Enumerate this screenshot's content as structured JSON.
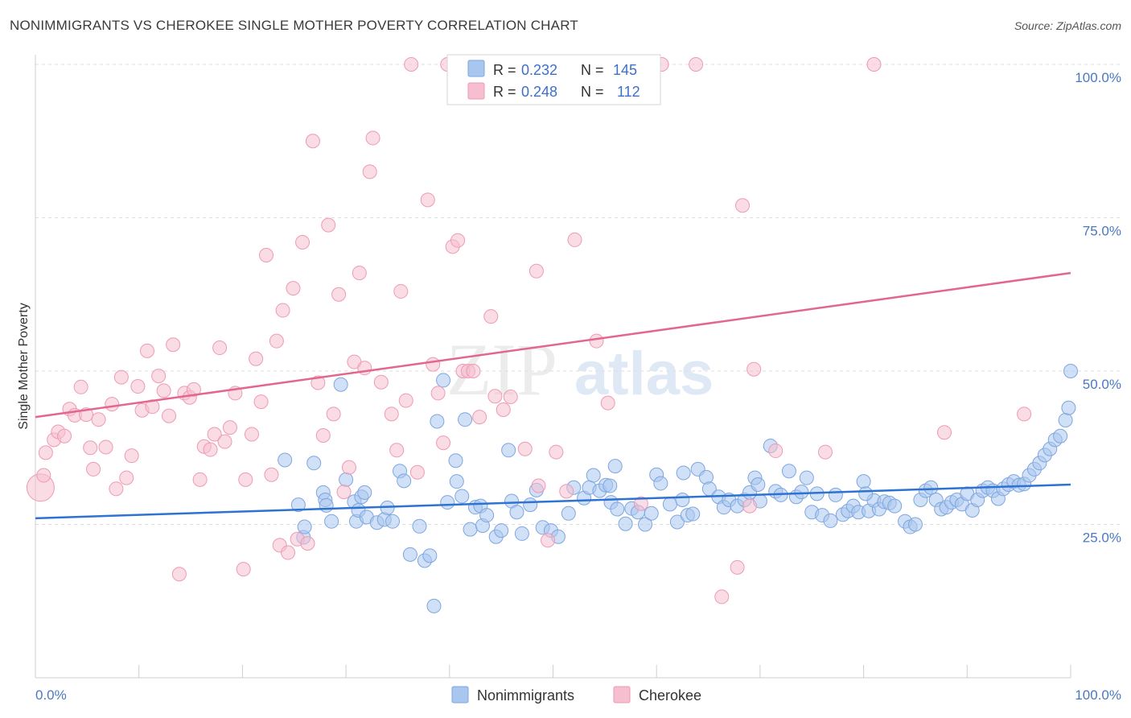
{
  "header": {
    "title": "NONIMMIGRANTS VS CHEROKEE SINGLE MOTHER POVERTY CORRELATION CHART",
    "source": "Source: ZipAtlas.com"
  },
  "watermark": {
    "part1": "ZIP",
    "part2": "atlas"
  },
  "chart_data": {
    "type": "scatter",
    "title": "NONIMMIGRANTS VS CHEROKEE SINGLE MOTHER POVERTY CORRELATION CHART",
    "ylabel": "Single Mother Poverty",
    "xlabel": "",
    "xlim": [
      0,
      100
    ],
    "ylim": [
      0,
      100
    ],
    "x_tick_labels": {
      "left": "0.0%",
      "right": "100.0%"
    },
    "y_ticks": [
      {
        "value": 25,
        "label": "25.0%"
      },
      {
        "value": 50,
        "label": "50.0%"
      },
      {
        "value": 75,
        "label": "75.0%"
      },
      {
        "value": 100,
        "label": "100.0%"
      }
    ],
    "grid": "horizontal dashed",
    "legend_placement": "top-center",
    "colors": {
      "nonimmigrants_fill": "#a9c6ef",
      "nonimmigrants_stroke": "#7ea6df",
      "nonimmigrants_line": "#2e72d2",
      "cherokee_fill": "#f6bfd0",
      "cherokee_stroke": "#ee9ab5",
      "cherokee_line": "#e2678f"
    },
    "legend": [
      {
        "r_label": "R =",
        "r_value": "0.232",
        "n_label": "N =",
        "n_value": "145"
      },
      {
        "r_label": "R =",
        "r_value": "0.248",
        "n_label": "N =",
        "n_value": "112"
      }
    ],
    "series": [
      {
        "name": "Nonimmigrants",
        "trend": {
          "x": [
            0,
            100
          ],
          "y": [
            26.0,
            31.5
          ]
        },
        "points": [
          [
            24.1,
            35.5
          ],
          [
            25.4,
            28.2
          ],
          [
            25.9,
            22.9
          ],
          [
            26.0,
            24.6
          ],
          [
            26.9,
            35.0
          ],
          [
            27.8,
            30.2
          ],
          [
            28.0,
            29.0
          ],
          [
            28.1,
            28.1
          ],
          [
            28.6,
            25.5
          ],
          [
            29.5,
            47.8
          ],
          [
            30.0,
            32.3
          ],
          [
            30.8,
            28.7
          ],
          [
            31.0,
            25.5
          ],
          [
            31.2,
            27.3
          ],
          [
            31.5,
            29.5
          ],
          [
            32.0,
            26.2
          ],
          [
            33.0,
            25.3
          ],
          [
            33.7,
            25.8
          ],
          [
            34.0,
            27.7
          ],
          [
            34.5,
            25.5
          ],
          [
            35.2,
            33.7
          ],
          [
            35.6,
            32.1
          ],
          [
            36.2,
            20.1
          ],
          [
            37.1,
            24.7
          ],
          [
            37.6,
            19.1
          ],
          [
            38.1,
            19.9
          ],
          [
            38.5,
            11.7
          ],
          [
            38.8,
            41.8
          ],
          [
            39.4,
            48.5
          ],
          [
            39.8,
            28.6
          ],
          [
            40.6,
            35.4
          ],
          [
            40.7,
            32.0
          ],
          [
            41.2,
            29.6
          ],
          [
            41.5,
            42.1
          ],
          [
            42.0,
            24.2
          ],
          [
            42.5,
            27.8
          ],
          [
            43.0,
            28.0
          ],
          [
            43.2,
            24.8
          ],
          [
            43.6,
            26.5
          ],
          [
            44.5,
            23.0
          ],
          [
            45.0,
            24.0
          ],
          [
            45.7,
            37.1
          ],
          [
            46.0,
            28.8
          ],
          [
            46.5,
            27.0
          ],
          [
            47.0,
            23.5
          ],
          [
            47.8,
            28.2
          ],
          [
            48.4,
            30.6
          ],
          [
            49.0,
            24.5
          ],
          [
            49.8,
            24.0
          ],
          [
            50.5,
            23.0
          ],
          [
            51.5,
            26.8
          ],
          [
            52.0,
            31.0
          ],
          [
            53.0,
            29.3
          ],
          [
            53.5,
            31.0
          ],
          [
            53.9,
            33.0
          ],
          [
            54.5,
            30.5
          ],
          [
            55.1,
            31.4
          ],
          [
            55.6,
            28.6
          ],
          [
            56.0,
            34.5
          ],
          [
            56.2,
            27.5
          ],
          [
            57.0,
            25.1
          ],
          [
            57.6,
            27.6
          ],
          [
            58.2,
            27.0
          ],
          [
            58.9,
            25.0
          ],
          [
            59.5,
            26.8
          ],
          [
            60.0,
            33.1
          ],
          [
            60.4,
            31.7
          ],
          [
            61.3,
            28.3
          ],
          [
            62.0,
            25.4
          ],
          [
            62.5,
            29.0
          ],
          [
            63.0,
            26.5
          ],
          [
            63.5,
            26.7
          ],
          [
            64.0,
            34.0
          ],
          [
            64.8,
            32.7
          ],
          [
            65.1,
            30.8
          ],
          [
            66.0,
            29.5
          ],
          [
            66.5,
            27.8
          ],
          [
            67.0,
            29.0
          ],
          [
            67.8,
            28.0
          ],
          [
            68.5,
            29.0
          ],
          [
            69.0,
            30.2
          ],
          [
            69.5,
            32.6
          ],
          [
            70.0,
            28.8
          ],
          [
            71.0,
            37.8
          ],
          [
            71.5,
            30.4
          ],
          [
            72.0,
            29.8
          ],
          [
            72.8,
            33.7
          ],
          [
            73.5,
            29.5
          ],
          [
            74.0,
            30.3
          ],
          [
            74.5,
            32.6
          ],
          [
            75.0,
            27.0
          ],
          [
            75.5,
            30.0
          ],
          [
            76.0,
            26.5
          ],
          [
            76.8,
            25.6
          ],
          [
            77.3,
            29.8
          ],
          [
            78.0,
            26.6
          ],
          [
            78.5,
            27.2
          ],
          [
            79.0,
            28.0
          ],
          [
            79.5,
            27.0
          ],
          [
            80.0,
            32.0
          ],
          [
            80.5,
            27.2
          ],
          [
            81.0,
            28.9
          ],
          [
            81.5,
            27.5
          ],
          [
            82.0,
            28.7
          ],
          [
            82.5,
            28.5
          ],
          [
            83.0,
            28.0
          ],
          [
            84.0,
            25.5
          ],
          [
            84.5,
            24.6
          ],
          [
            85.0,
            25.0
          ],
          [
            85.5,
            29.0
          ],
          [
            86.0,
            30.5
          ],
          [
            86.5,
            31.0
          ],
          [
            87.0,
            29.0
          ],
          [
            87.5,
            27.5
          ],
          [
            88.0,
            27.8
          ],
          [
            88.5,
            28.6
          ],
          [
            89.0,
            29.0
          ],
          [
            89.5,
            28.3
          ],
          [
            90.0,
            30.0
          ],
          [
            90.5,
            27.3
          ],
          [
            91.0,
            29.0
          ],
          [
            91.5,
            30.5
          ],
          [
            92.0,
            31.0
          ],
          [
            92.5,
            30.5
          ],
          [
            93.0,
            29.2
          ],
          [
            93.5,
            30.8
          ],
          [
            94.0,
            31.5
          ],
          [
            94.5,
            32.0
          ],
          [
            95.0,
            31.4
          ],
          [
            95.5,
            31.6
          ],
          [
            96.0,
            33.0
          ],
          [
            96.5,
            34.0
          ],
          [
            97.0,
            35.0
          ],
          [
            97.5,
            36.3
          ],
          [
            98.0,
            37.3
          ],
          [
            98.5,
            38.8
          ],
          [
            99.0,
            39.4
          ],
          [
            99.5,
            42.0
          ],
          [
            99.8,
            44.0
          ],
          [
            100.0,
            50.0
          ],
          [
            31.8,
            30.2
          ],
          [
            55.5,
            31.3
          ],
          [
            62.6,
            33.4
          ],
          [
            69.8,
            31.5
          ],
          [
            80.2,
            30.0
          ]
        ]
      },
      {
        "name": "Cherokee",
        "trend": {
          "x": [
            0,
            100
          ],
          "y": [
            42.5,
            66.0
          ]
        },
        "points": [
          [
            0.5,
            31.0
          ],
          [
            0.8,
            33.0
          ],
          [
            1.0,
            36.7
          ],
          [
            1.8,
            38.8
          ],
          [
            2.2,
            40.1
          ],
          [
            2.8,
            39.4
          ],
          [
            3.3,
            43.8
          ],
          [
            3.8,
            42.8
          ],
          [
            4.4,
            47.4
          ],
          [
            4.9,
            42.9
          ],
          [
            5.3,
            37.5
          ],
          [
            5.6,
            34.0
          ],
          [
            6.1,
            42.1
          ],
          [
            6.8,
            37.6
          ],
          [
            7.4,
            44.6
          ],
          [
            7.8,
            30.8
          ],
          [
            8.3,
            49.0
          ],
          [
            8.8,
            32.6
          ],
          [
            9.3,
            36.2
          ],
          [
            9.9,
            47.5
          ],
          [
            10.3,
            43.6
          ],
          [
            10.8,
            53.3
          ],
          [
            11.3,
            44.2
          ],
          [
            11.9,
            49.2
          ],
          [
            12.4,
            46.8
          ],
          [
            12.9,
            42.7
          ],
          [
            13.3,
            54.3
          ],
          [
            13.9,
            16.9
          ],
          [
            14.4,
            46.4
          ],
          [
            14.9,
            45.7
          ],
          [
            15.3,
            47.0
          ],
          [
            15.9,
            32.3
          ],
          [
            16.3,
            37.7
          ],
          [
            16.9,
            37.2
          ],
          [
            17.3,
            39.7
          ],
          [
            17.8,
            53.8
          ],
          [
            18.3,
            38.5
          ],
          [
            18.8,
            40.8
          ],
          [
            19.3,
            46.4
          ],
          [
            20.1,
            17.7
          ],
          [
            20.3,
            32.3
          ],
          [
            20.9,
            39.7
          ],
          [
            21.3,
            52.0
          ],
          [
            21.8,
            45.0
          ],
          [
            22.3,
            68.9
          ],
          [
            22.8,
            33.1
          ],
          [
            23.3,
            54.9
          ],
          [
            23.6,
            21.6
          ],
          [
            23.9,
            59.9
          ],
          [
            24.4,
            20.4
          ],
          [
            24.9,
            63.5
          ],
          [
            25.3,
            22.6
          ],
          [
            25.8,
            71.0
          ],
          [
            26.3,
            21.9
          ],
          [
            26.8,
            87.5
          ],
          [
            27.3,
            48.1
          ],
          [
            27.8,
            39.5
          ],
          [
            28.3,
            73.8
          ],
          [
            28.8,
            43.0
          ],
          [
            29.3,
            62.5
          ],
          [
            29.8,
            30.3
          ],
          [
            30.3,
            34.3
          ],
          [
            30.8,
            51.5
          ],
          [
            31.3,
            66.0
          ],
          [
            31.8,
            50.5
          ],
          [
            32.3,
            82.5
          ],
          [
            32.6,
            88.0
          ],
          [
            33.4,
            48.2
          ],
          [
            34.4,
            43.0
          ],
          [
            34.9,
            37.1
          ],
          [
            35.3,
            63.0
          ],
          [
            35.8,
            45.2
          ],
          [
            36.3,
            100.0
          ],
          [
            36.9,
            33.5
          ],
          [
            37.9,
            77.9
          ],
          [
            38.4,
            51.1
          ],
          [
            38.9,
            46.4
          ],
          [
            39.4,
            38.3
          ],
          [
            39.8,
            100.0
          ],
          [
            40.3,
            70.3
          ],
          [
            40.8,
            71.3
          ],
          [
            41.3,
            50.0
          ],
          [
            41.8,
            50.0
          ],
          [
            42.3,
            50.0
          ],
          [
            42.9,
            42.5
          ],
          [
            44.0,
            58.9
          ],
          [
            44.4,
            45.9
          ],
          [
            45.2,
            43.7
          ],
          [
            45.9,
            45.8
          ],
          [
            46.8,
            100.0
          ],
          [
            47.3,
            37.3
          ],
          [
            48.4,
            66.3
          ],
          [
            48.6,
            31.3
          ],
          [
            49.5,
            22.4
          ],
          [
            50.3,
            36.8
          ],
          [
            51.3,
            30.4
          ],
          [
            52.1,
            71.4
          ],
          [
            54.2,
            54.9
          ],
          [
            55.3,
            44.8
          ],
          [
            58.5,
            28.4
          ],
          [
            60.5,
            100.0
          ],
          [
            63.8,
            100.0
          ],
          [
            66.3,
            13.2
          ],
          [
            67.8,
            18.0
          ],
          [
            68.3,
            77.0
          ],
          [
            69.0,
            28.0
          ],
          [
            69.4,
            50.3
          ],
          [
            71.5,
            37.0
          ],
          [
            76.3,
            36.8
          ],
          [
            81.0,
            100.0
          ],
          [
            87.8,
            40.0
          ],
          [
            95.5,
            43.0
          ]
        ]
      }
    ]
  },
  "bottom_legend": [
    {
      "label": "Nonimmigrants"
    },
    {
      "label": "Cherokee"
    }
  ]
}
